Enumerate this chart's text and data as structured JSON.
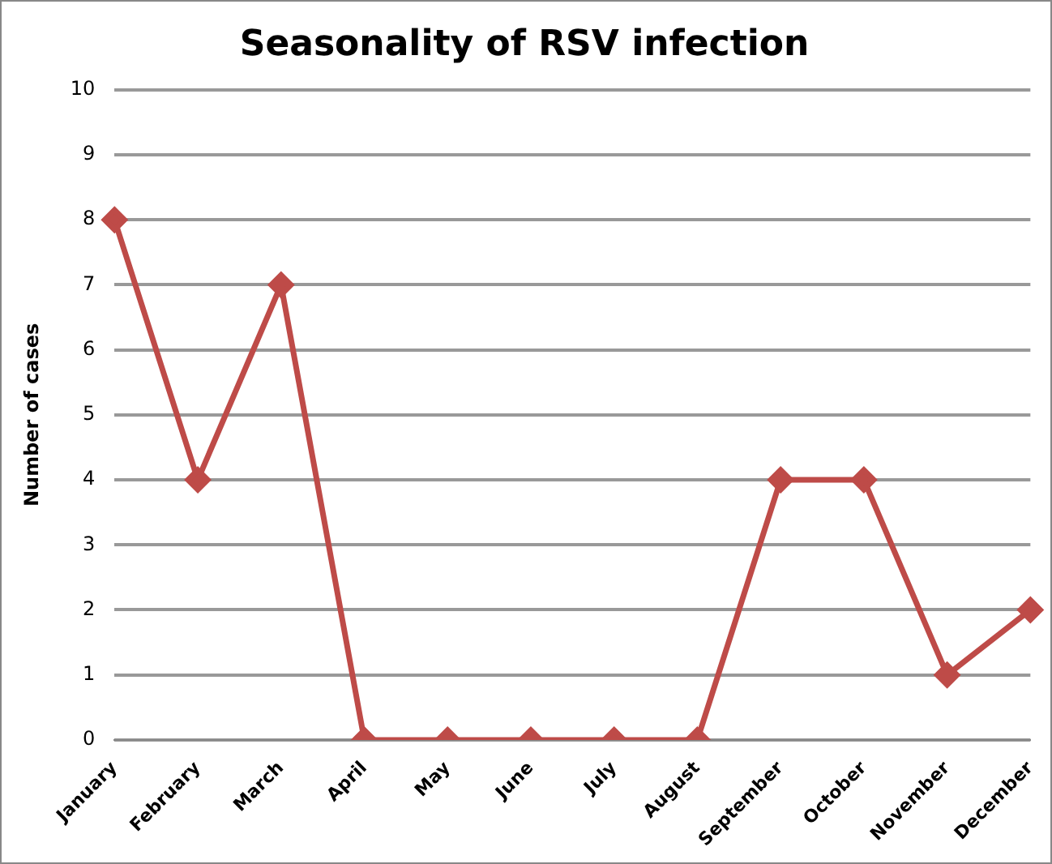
{
  "chart_data": {
    "type": "line",
    "title": "Seasonality of RSV infection",
    "ylabel": "Number of cases",
    "categories": [
      "January",
      "February",
      "March",
      "April",
      "May",
      "June",
      "July",
      "August",
      "September",
      "October",
      "November",
      "December"
    ],
    "series": [
      {
        "color": "#be4b48",
        "values": [
          8,
          4,
          7,
          0,
          0,
          0,
          0,
          0,
          4,
          4,
          1,
          2
        ]
      }
    ],
    "ylim": [
      0,
      10
    ],
    "yticks": [
      0,
      1,
      2,
      3,
      4,
      5,
      6,
      7,
      8,
      9,
      10
    ],
    "grid": "y",
    "legend": false,
    "marker": "diamond",
    "line_style": "solid"
  }
}
